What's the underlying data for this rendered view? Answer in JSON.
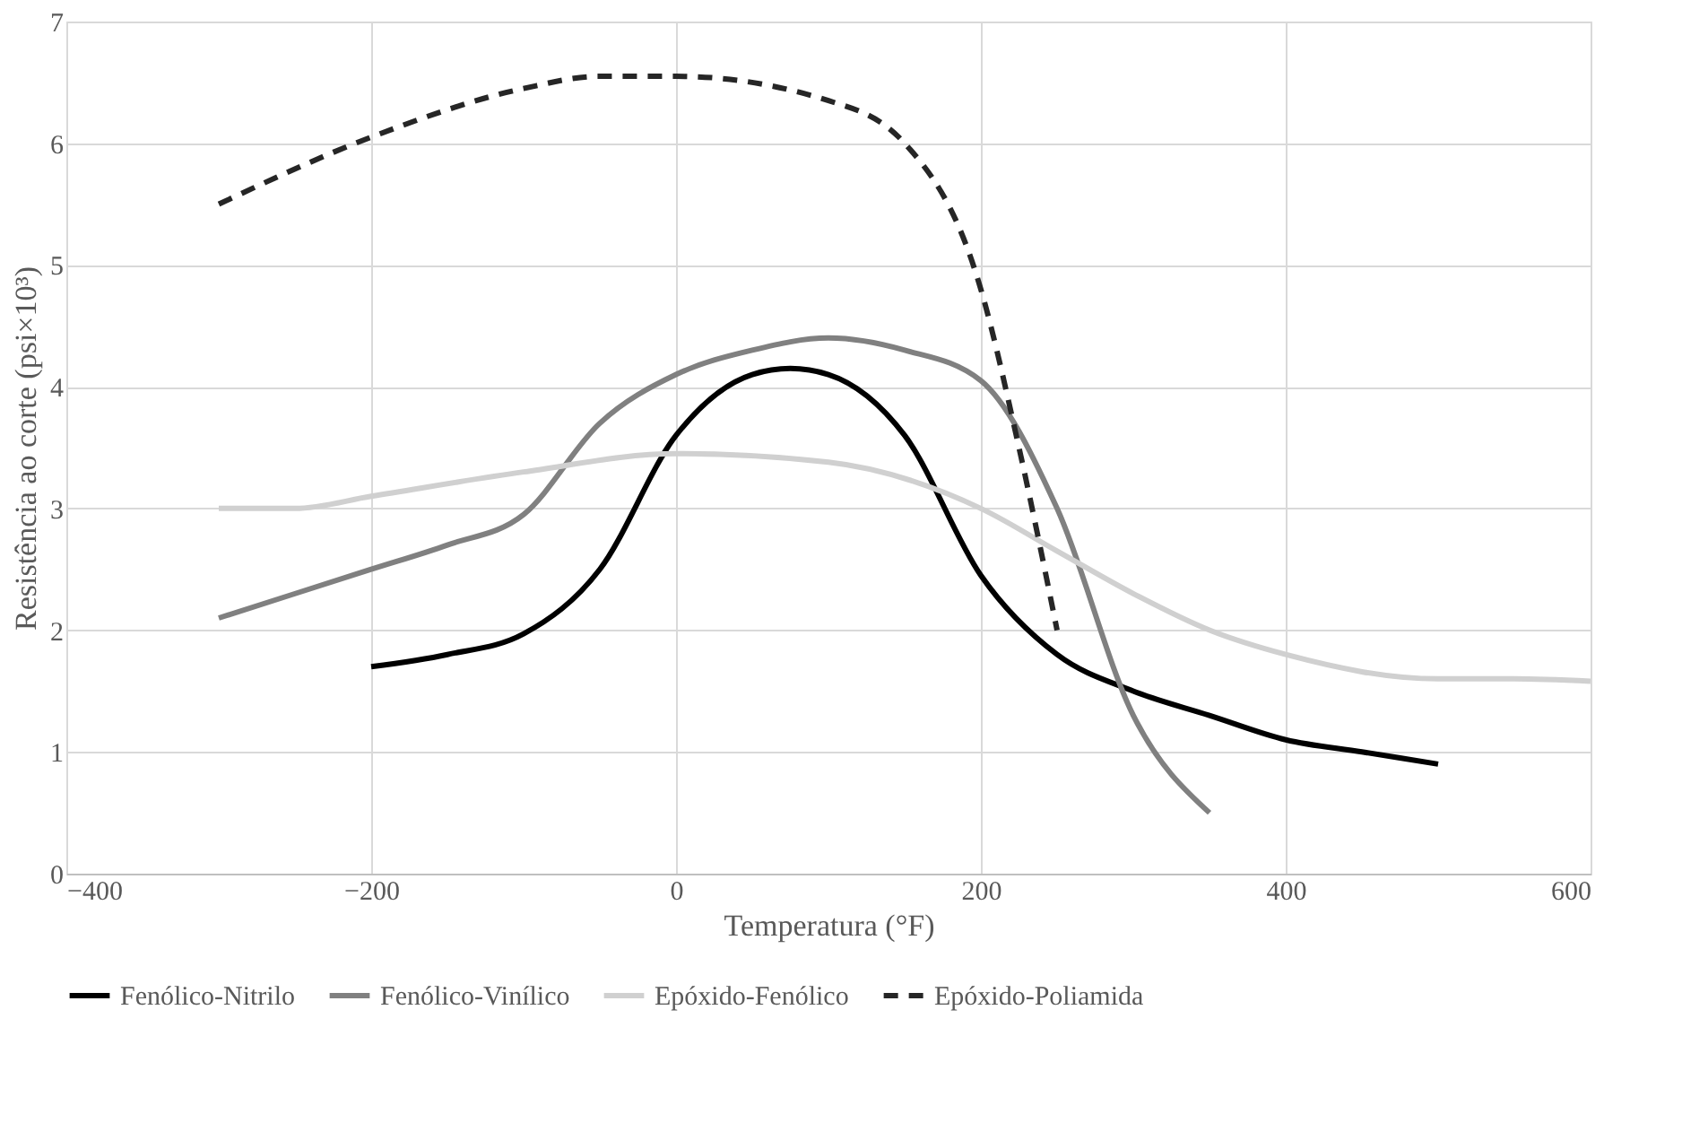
{
  "chart_data": {
    "type": "line",
    "xlabel": "Temperatura (°F)",
    "ylabel": "Resistência ao corte (psi×10³)",
    "xlim": [
      -400,
      600
    ],
    "xticks": [
      -400,
      -200,
      0,
      200,
      400,
      600
    ],
    "ylim": [
      0,
      7
    ],
    "yticks": [
      0,
      1,
      2,
      3,
      4,
      5,
      6,
      7
    ],
    "grid": true,
    "legend": "bottom",
    "marker": "none",
    "series": [
      {
        "name": "Fenólico-Nitrilo",
        "color": "#000000",
        "line_style": "solid",
        "x": [
          -200,
          -150,
          -100,
          -50,
          0,
          50,
          75,
          100,
          150,
          200,
          250,
          300,
          350,
          400,
          450,
          500
        ],
        "values": [
          1.7,
          1.8,
          1.97,
          2.5,
          3.6,
          4.1,
          4.15,
          4.1,
          3.6,
          2.45,
          1.8,
          1.5,
          1.3,
          1.1,
          1.0,
          0.9
        ]
      },
      {
        "name": "Fenólico-Vinílico",
        "color": "#808080",
        "line_style": "solid",
        "x": [
          -300,
          -200,
          -150,
          -100,
          -50,
          0,
          50,
          100,
          150,
          200,
          250,
          300,
          350
        ],
        "values": [
          2.1,
          2.5,
          2.7,
          2.95,
          3.7,
          4.1,
          4.3,
          4.4,
          4.3,
          4.05,
          3.0,
          1.3,
          0.5
        ]
      },
      {
        "name": "Epóxido-Fenólico",
        "color": "#d0d0d0",
        "line_style": "solid",
        "x": [
          -300,
          -250,
          -200,
          -100,
          0,
          100,
          200,
          250,
          300,
          350,
          400,
          500,
          550,
          600
        ],
        "values": [
          3.0,
          3.0,
          3.1,
          3.3,
          3.45,
          3.38,
          3.0,
          2.65,
          2.3,
          2.0,
          1.8,
          1.6,
          1.6,
          1.58
        ]
      },
      {
        "name": "Epóxido-Poliamida",
        "color": "#262626",
        "line_style": "dashed",
        "x": [
          -300,
          -200,
          -100,
          -50,
          0,
          100,
          150,
          200,
          225,
          250
        ],
        "values": [
          5.5,
          6.05,
          6.45,
          6.55,
          6.55,
          6.35,
          6.0,
          4.8,
          3.5,
          2.0
        ]
      }
    ]
  }
}
